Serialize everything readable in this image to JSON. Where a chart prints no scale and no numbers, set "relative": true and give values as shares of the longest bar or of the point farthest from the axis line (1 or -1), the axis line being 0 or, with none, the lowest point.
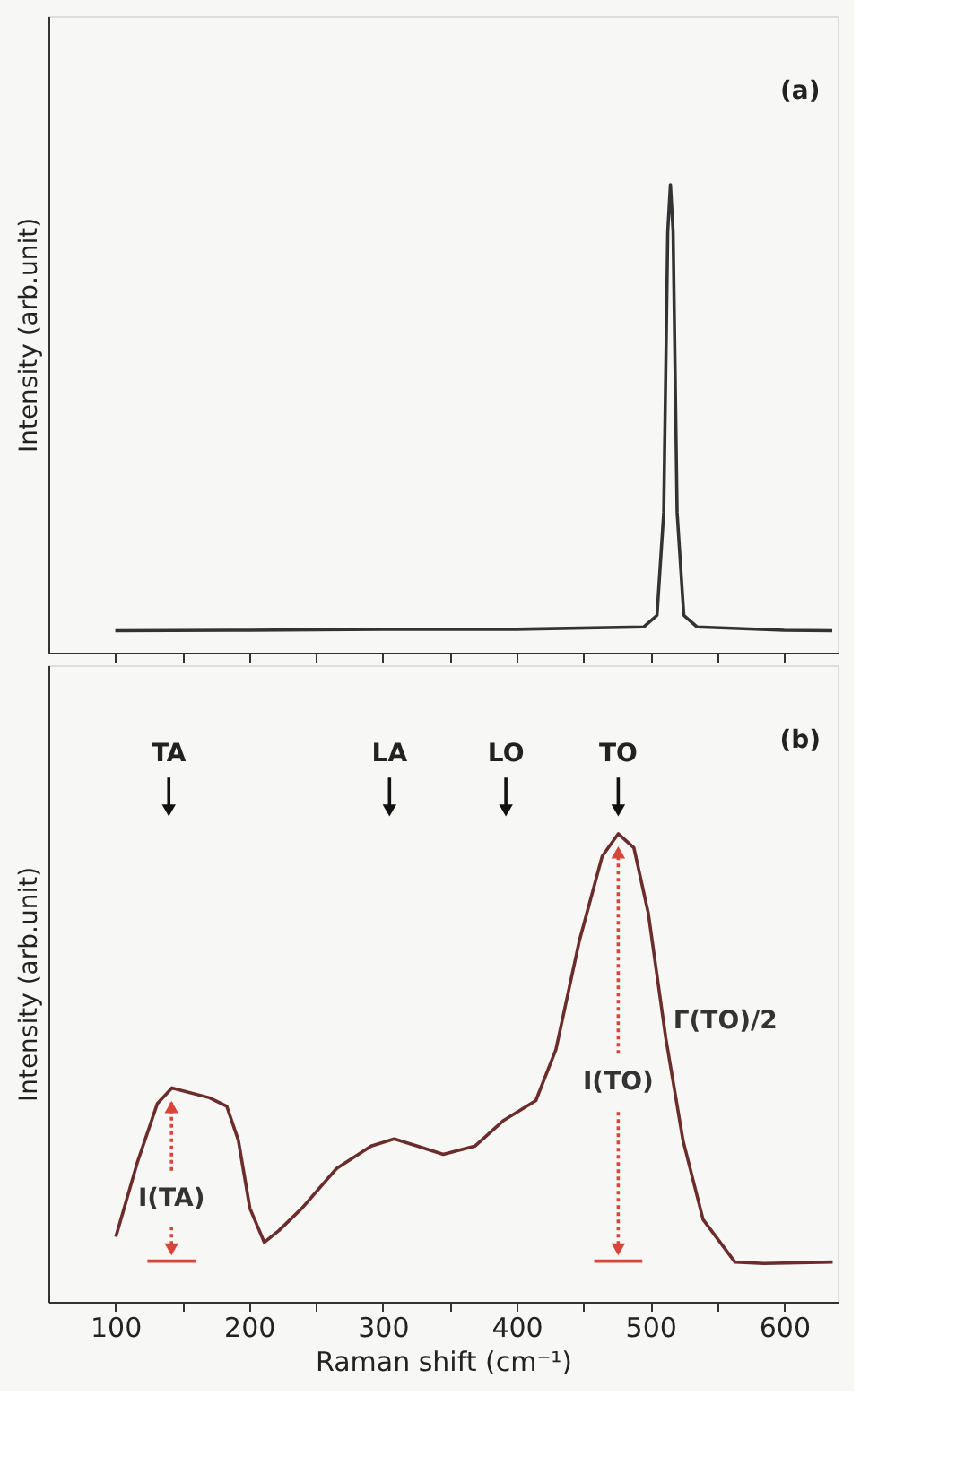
{
  "chart_data": [
    {
      "type": "line",
      "relative": true,
      "ylabel": "Intensity (arb.unit)",
      "xlim": [
        50,
        640
      ],
      "xticks": [
        {
          "value": 100,
          "label": null
        },
        {
          "value": 150,
          "label": null
        },
        {
          "value": 200,
          "label": null
        },
        {
          "value": 250,
          "label": null
        },
        {
          "value": 300,
          "label": null
        },
        {
          "value": 350,
          "label": null
        },
        {
          "value": 400,
          "label": null
        },
        {
          "value": 450,
          "label": null
        },
        {
          "value": 500,
          "label": null
        },
        {
          "value": 550,
          "label": null
        },
        {
          "value": 600,
          "label": null
        }
      ],
      "tick_labels": false,
      "series": [
        {
          "color": "#333333",
          "x": [
            100,
            200,
            300,
            400,
            495,
            505,
            510,
            513,
            515,
            517,
            520,
            525,
            535,
            600,
            636
          ],
          "values": [
            0.047,
            0.048,
            0.05,
            0.05,
            0.055,
            0.08,
            0.3,
            0.9,
            1.0,
            0.9,
            0.3,
            0.08,
            0.055,
            0.048,
            0.047
          ]
        }
      ],
      "annotations": [
        "(a)"
      ]
    },
    {
      "type": "line",
      "relative": true,
      "ylabel": "Intensity (arb.unit)",
      "xlabel": "Raman shift (cm⁻¹)",
      "xlim": [
        50,
        640
      ],
      "xticks": [
        100,
        {
          "value": 150,
          "label": null
        },
        200,
        {
          "value": 250,
          "label": null
        },
        300,
        {
          "value": 350,
          "label": null
        },
        400,
        {
          "value": 450,
          "label": null
        },
        500,
        {
          "value": 550,
          "label": null
        },
        600
      ],
      "tick_labels": "x",
      "series": [
        {
          "color": "#6b2c2c",
          "x": [
            100.4,
            116.4,
            131.5,
            142.3,
            170.4,
            183.3,
            192,
            200.6,
            211.4,
            222.2,
            239.5,
            265.4,
            291.3,
            308.5,
            325.8,
            345.2,
            369,
            390.5,
            414.4,
            429.4,
            446.8,
            464,
            476,
            487.7,
            498.5,
            511.5,
            524.4,
            539.4,
            563.2,
            584.8,
            636.3
          ],
          "values": [
            0.139,
            0.297,
            0.424,
            0.457,
            0.436,
            0.418,
            0.345,
            0.2,
            0.127,
            0.152,
            0.2,
            0.285,
            0.333,
            0.348,
            0.333,
            0.315,
            0.333,
            0.388,
            0.43,
            0.539,
            0.77,
            0.952,
            1.0,
            0.97,
            0.83,
            0.564,
            0.345,
            0.176,
            0.085,
            0.082,
            0.085
          ]
        },
        {
          "color": "#d9453a",
          "x": [
            124,
            160
          ],
          "values": [
            0.087,
            0.087
          ]
        },
        {
          "color": "#d9453a",
          "x": [
            458,
            494
          ],
          "values": [
            0.087,
            0.087
          ]
        }
      ],
      "annotations": [
        "(b)",
        "TA",
        "LA",
        "LO",
        "TO",
        "I(TA)",
        "I(TO)",
        "Γ(TO)/2"
      ]
    }
  ]
}
